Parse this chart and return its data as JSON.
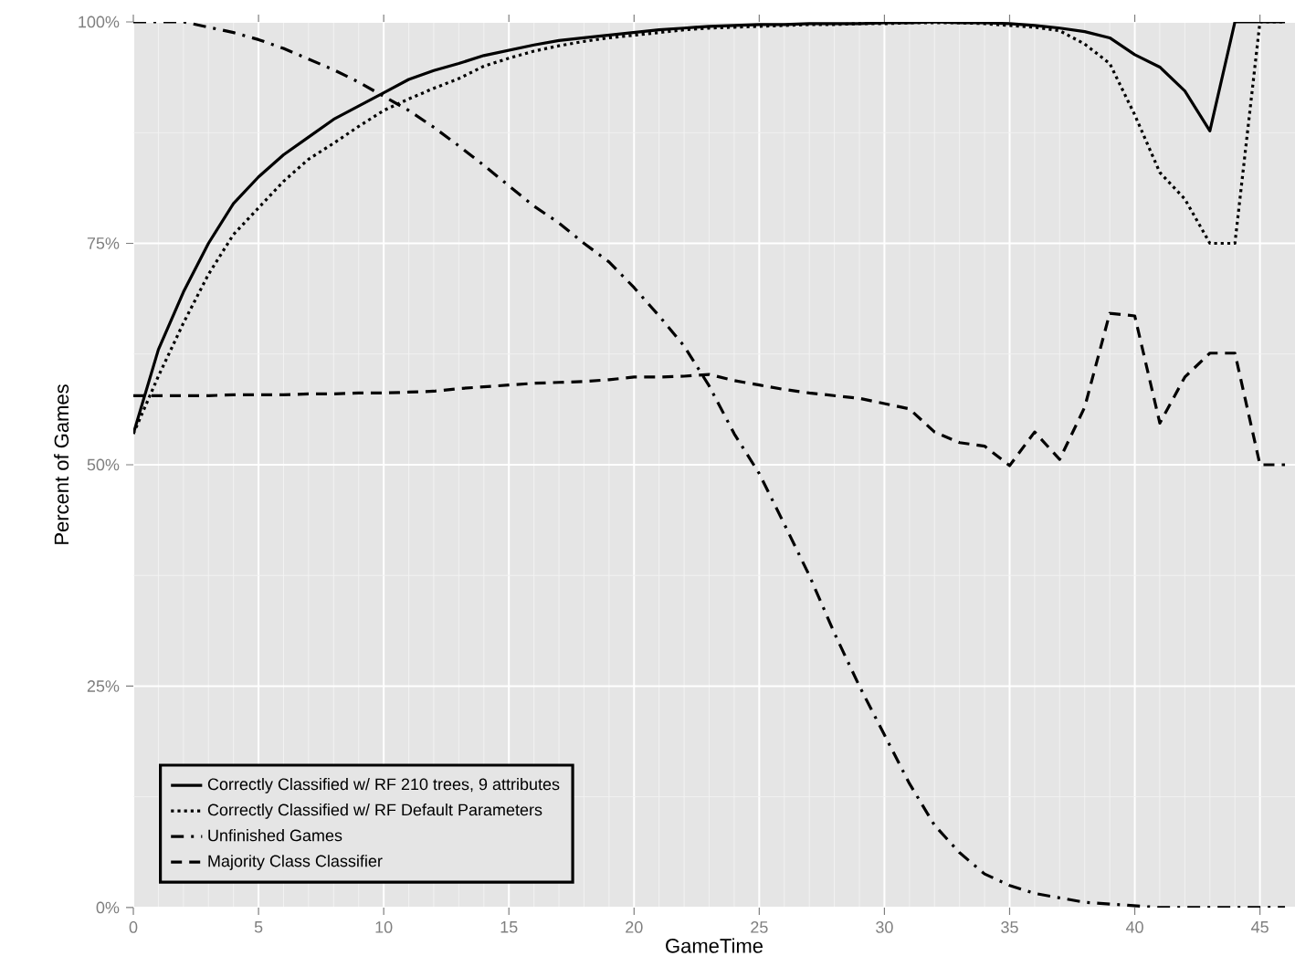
{
  "chart_data": {
    "type": "line",
    "xlabel": "GameTime",
    "ylabel": "Percent of Games",
    "x": [
      0,
      1,
      2,
      3,
      4,
      5,
      6,
      7,
      8,
      9,
      10,
      11,
      12,
      13,
      14,
      15,
      16,
      17,
      18,
      19,
      20,
      21,
      22,
      23,
      24,
      25,
      26,
      27,
      28,
      29,
      30,
      31,
      32,
      33,
      34,
      35,
      36,
      37,
      38,
      39,
      40,
      41,
      42,
      43,
      44,
      45,
      46
    ],
    "xlim": [
      0,
      46.4
    ],
    "xticks": [
      0,
      5,
      10,
      15,
      20,
      25,
      30,
      35,
      40,
      45
    ],
    "ylim": [
      0,
      100
    ],
    "yticks": [
      {
        "value": 0,
        "label": "0%"
      },
      {
        "value": 25,
        "label": "25%"
      },
      {
        "value": 50,
        "label": "50%"
      },
      {
        "value": 75,
        "label": "75%"
      },
      {
        "value": 100,
        "label": "100%"
      }
    ],
    "grid": true,
    "legend": "bottom left",
    "marker": "none",
    "series": [
      {
        "name": "Correctly Classified w/ RF 210 trees, 9 attributes",
        "color": "#000000",
        "line_style": "solid",
        "values": [
          53.5,
          63,
          69.5,
          75,
          79.5,
          82.5,
          85,
          87,
          89,
          90.5,
          92,
          93.5,
          94.5,
          95.3,
          96.2,
          96.8,
          97.4,
          97.9,
          98.2,
          98.5,
          98.8,
          99.1,
          99.3,
          99.5,
          99.6,
          99.7,
          99.7,
          99.8,
          99.8,
          99.8,
          99.9,
          99.9,
          100,
          99.9,
          99.9,
          99.8,
          99.6,
          99.3,
          98.9,
          98.2,
          96.3,
          94.9,
          92.2,
          87.7,
          100,
          100,
          100
        ]
      },
      {
        "name": "Correctly Classified w/ RF Default Parameters",
        "color": "#000000",
        "line_style": "dotted",
        "values": [
          53.5,
          60,
          66,
          71.5,
          76,
          79,
          82,
          84.5,
          86.3,
          88.2,
          90,
          91.3,
          92.5,
          93.6,
          95,
          95.9,
          96.7,
          97.3,
          97.8,
          98.2,
          98.5,
          98.8,
          99.1,
          99.3,
          99.4,
          99.5,
          99.6,
          99.7,
          99.7,
          99.8,
          99.8,
          99.9,
          99.9,
          99.9,
          99.8,
          99.6,
          99.4,
          99,
          97.5,
          95.3,
          89.5,
          83,
          80,
          75,
          75,
          100,
          100
        ]
      },
      {
        "name": "Unfinished Games",
        "color": "#000000",
        "line_style": "dashdot",
        "values": [
          100,
          100,
          100,
          99.4,
          98.8,
          98,
          97,
          95.8,
          94.6,
          93.2,
          91.6,
          90,
          88.1,
          86,
          83.8,
          81.5,
          79.2,
          77.3,
          75,
          72.9,
          70,
          66.8,
          63.4,
          58.9,
          53.5,
          49,
          43.3,
          37.5,
          31,
          25,
          19.5,
          14,
          9.3,
          6.2,
          3.8,
          2.5,
          1.6,
          1.1,
          0.6,
          0.4,
          0.2,
          0,
          0,
          0,
          0,
          0,
          0
        ]
      },
      {
        "name": "Majority Class Classifier",
        "color": "#000000",
        "line_style": "dashed",
        "values": [
          57.8,
          57.8,
          57.8,
          57.8,
          57.9,
          57.9,
          57.9,
          58,
          58,
          58.1,
          58.1,
          58.2,
          58.3,
          58.6,
          58.8,
          59,
          59.2,
          59.3,
          59.4,
          59.6,
          59.9,
          59.9,
          60,
          60.2,
          59.5,
          59,
          58.5,
          58.1,
          57.8,
          57.5,
          56.9,
          56.3,
          53.7,
          52.5,
          52.1,
          49.9,
          53.7,
          50.6,
          56.5,
          67.1,
          66.8,
          54.7,
          59.9,
          62.6,
          62.6,
          50,
          50
        ]
      }
    ]
  }
}
